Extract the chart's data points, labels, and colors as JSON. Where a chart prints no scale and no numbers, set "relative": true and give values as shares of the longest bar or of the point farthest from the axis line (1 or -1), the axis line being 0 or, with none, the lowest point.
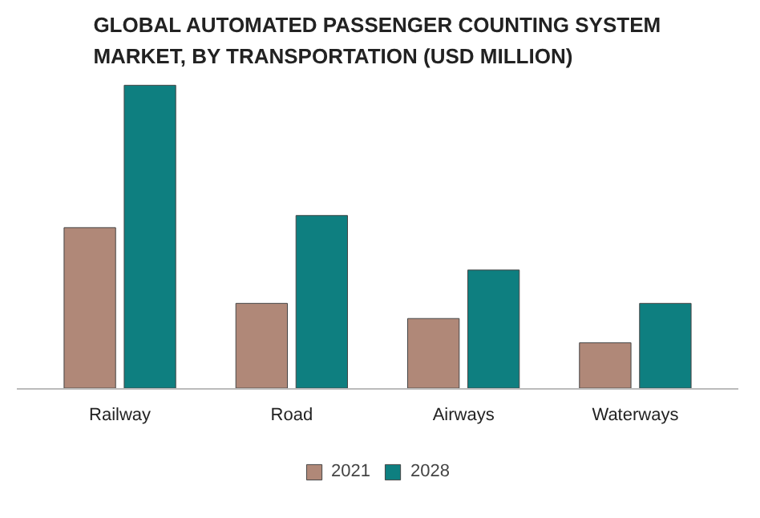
{
  "chart_data": {
    "type": "bar",
    "title": "GLOBAL AUTOMATED PASSENGER COUNTING SYSTEM MARKET, BY TRANSPORTATION (USD MILLION)",
    "categories": [
      "Railway",
      "Road",
      "Airways",
      "Waterways"
    ],
    "relative": true,
    "series": [
      {
        "name": "2021",
        "color": "#b08878",
        "values": [
          0.53,
          0.28,
          0.23,
          0.15
        ]
      },
      {
        "name": "2028",
        "color": "#0e7f80",
        "values": [
          1,
          0.57,
          0.39,
          0.28
        ]
      }
    ],
    "legend": "bottom"
  }
}
